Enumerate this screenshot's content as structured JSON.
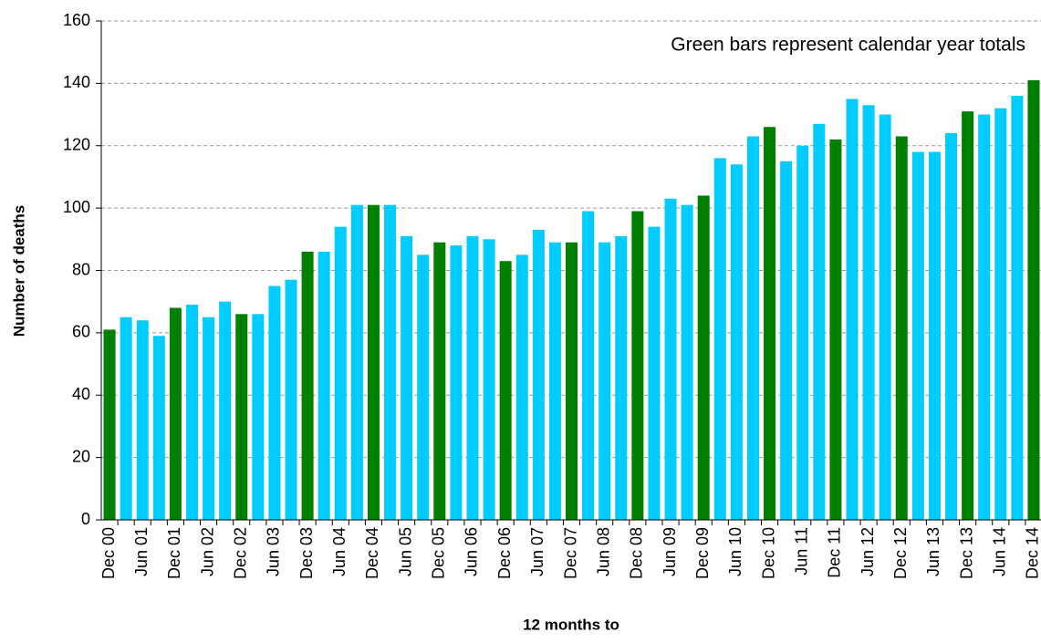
{
  "chart_data": {
    "type": "bar",
    "annotation": "Green bars represent calendar year totals",
    "y_label": "Number of deaths",
    "x_label": "12 months to",
    "categories": [
      "Dec 00",
      null,
      "Jun 01",
      null,
      "Dec 01",
      null,
      "Jun 02",
      null,
      "Dec 02",
      null,
      "Jun 03",
      null,
      "Dec 03",
      null,
      "Jun 04",
      null,
      "Dec 04",
      null,
      "Jun 05",
      null,
      "Dec 05",
      null,
      "Jun 06",
      null,
      "Dec 06",
      null,
      "Jun 07",
      null,
      "Dec 07",
      null,
      "Jun 08",
      null,
      "Dec 08",
      null,
      "Jun 09",
      null,
      "Dec 09",
      null,
      "Jun 10",
      null,
      "Dec 10",
      null,
      "Jun 11",
      null,
      "Dec 11",
      null,
      "Jun 12",
      null,
      "Dec 12",
      null,
      "Jun 13",
      null,
      "Dec 13",
      null,
      "Jun 14",
      null,
      "Dec 14"
    ],
    "values": [
      61,
      65,
      64,
      59,
      68,
      69,
      65,
      70,
      66,
      66,
      75,
      77,
      86,
      86,
      94,
      101,
      101,
      101,
      91,
      85,
      89,
      88,
      91,
      90,
      83,
      85,
      93,
      89,
      89,
      99,
      89,
      91,
      99,
      94,
      103,
      101,
      104,
      116,
      114,
      123,
      126,
      115,
      120,
      127,
      122,
      135,
      133,
      130,
      123,
      118,
      118,
      124,
      131,
      130,
      132,
      136,
      141
    ],
    "colors": [
      "#008000",
      "#00ccff",
      "#00ccff",
      "#00ccff",
      "#008000",
      "#00ccff",
      "#00ccff",
      "#00ccff",
      "#008000",
      "#00ccff",
      "#00ccff",
      "#00ccff",
      "#008000",
      "#00ccff",
      "#00ccff",
      "#00ccff",
      "#008000",
      "#00ccff",
      "#00ccff",
      "#00ccff",
      "#008000",
      "#00ccff",
      "#00ccff",
      "#00ccff",
      "#008000",
      "#00ccff",
      "#00ccff",
      "#00ccff",
      "#008000",
      "#00ccff",
      "#00ccff",
      "#00ccff",
      "#008000",
      "#00ccff",
      "#00ccff",
      "#00ccff",
      "#008000",
      "#00ccff",
      "#00ccff",
      "#00ccff",
      "#008000",
      "#00ccff",
      "#00ccff",
      "#00ccff",
      "#008000",
      "#00ccff",
      "#00ccff",
      "#00ccff",
      "#008000",
      "#00ccff",
      "#00ccff",
      "#00ccff",
      "#008000",
      "#00ccff",
      "#00ccff",
      "#00ccff",
      "#008000"
    ],
    "ylim": [
      0,
      160
    ],
    "yticks": [
      0,
      20,
      40,
      60,
      80,
      100,
      120,
      140,
      160
    ],
    "grid": true
  }
}
